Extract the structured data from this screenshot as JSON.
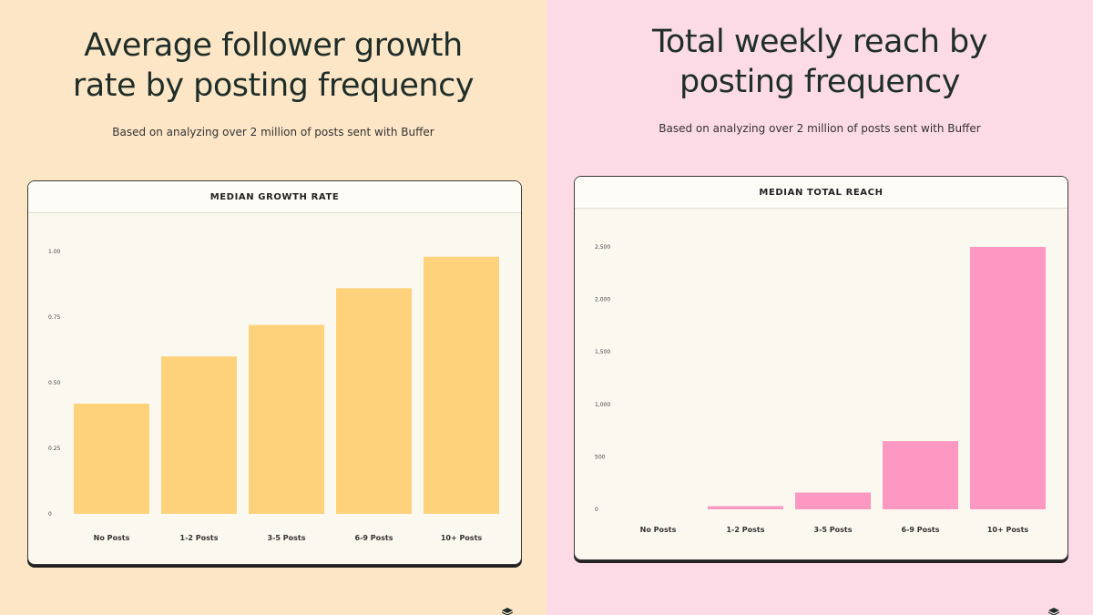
{
  "colors": {
    "left_bg": "#fde6c6",
    "right_bg": "#fcdbe7",
    "growth_bar": "#fdd27b",
    "reach_bar": "#fd98c3"
  },
  "left": {
    "title_line1": "Average follower growth",
    "title_line2": "rate by posting frequency",
    "subtitle": "Based on analyzing over 2 million of posts sent with Buffer",
    "card_title": "MEDIAN GROWTH RATE"
  },
  "right": {
    "title_line1": "Total weekly reach by",
    "title_line2": "posting frequency",
    "subtitle": "Based on analyzing over 2 million of posts sent with Buffer",
    "card_title": "MEDIAN TOTAL REACH"
  },
  "chart_data": [
    {
      "type": "bar",
      "title": "MEDIAN GROWTH RATE",
      "categories": [
        "No Posts",
        "1-2 Posts",
        "3-5 Posts",
        "6-9 Posts",
        "10+ Posts"
      ],
      "values": [
        0.42,
        0.6,
        0.72,
        0.86,
        0.98
      ],
      "ylim": [
        0,
        1.0
      ],
      "yticks": [
        0,
        0.25,
        0.5,
        0.75,
        1.0
      ],
      "ytick_labels": [
        "0",
        "0.25",
        "0.50",
        "0.75",
        "1.00"
      ],
      "xlabel": "",
      "ylabel": "",
      "grid": false
    },
    {
      "type": "bar",
      "title": "MEDIAN TOTAL REACH",
      "categories": [
        "No Posts",
        "1-2 Posts",
        "3-5 Posts",
        "6-9 Posts",
        "10+ Posts"
      ],
      "values": [
        0,
        30,
        160,
        650,
        2500
      ],
      "ylim": [
        0,
        2500
      ],
      "yticks": [
        0,
        500,
        1000,
        1500,
        2000,
        2500
      ],
      "ytick_labels": [
        "0",
        "500",
        "1,000",
        "1,500",
        "2,000",
        "2,500"
      ],
      "xlabel": "",
      "ylabel": "",
      "grid": false
    }
  ]
}
